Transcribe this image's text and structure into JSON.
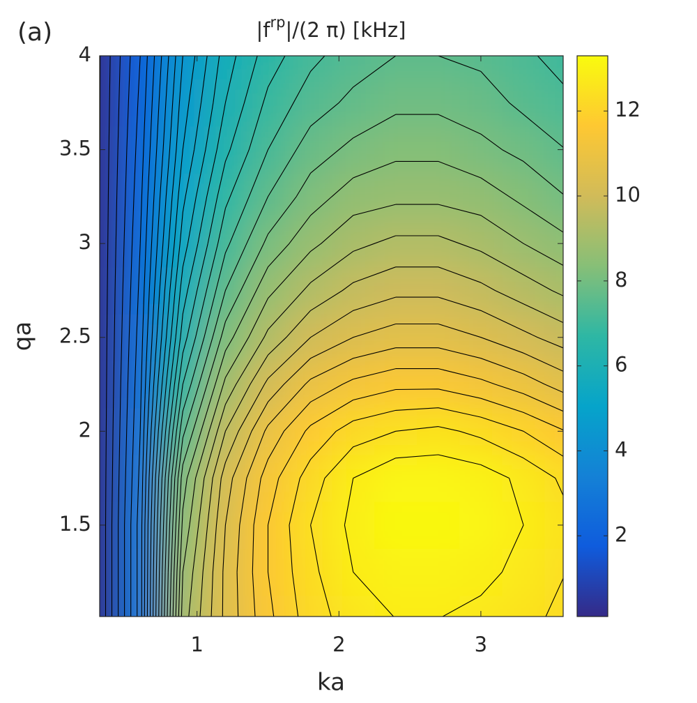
{
  "label": "(a)",
  "chart_data": {
    "type": "contour",
    "title": {
      "main": "|f",
      "sup": "rp",
      "rest": "|/(2 π) [kHz]"
    },
    "x_label": "ka",
    "y_label": "qa",
    "x": [
      0.3,
      0.6,
      0.9,
      1.2,
      1.5,
      1.8,
      2.1,
      2.4,
      2.7,
      3.0,
      3.3,
      3.6
    ],
    "y": [
      1.0,
      1.25,
      1.5,
      1.75,
      2.0,
      2.25,
      2.5,
      2.75,
      3.0,
      3.25,
      3.5,
      3.75,
      4.0
    ],
    "z": [
      [
        0.3,
        3,
        9,
        10.5,
        11.5,
        12.2,
        12.6,
        12.8,
        12.8,
        12.7,
        12.5,
        12.3
      ],
      [
        0.3,
        3,
        8.8,
        10.5,
        11.6,
        12.3,
        12.8,
        13.0,
        13.0,
        12.9,
        12.7,
        12.4
      ],
      [
        0.3,
        3,
        8.5,
        10.4,
        11.6,
        12.4,
        12.9,
        13.2,
        13.2,
        13.1,
        12.8,
        12.5
      ],
      [
        0.3,
        2.9,
        8.2,
        10.2,
        11.4,
        12.2,
        12.8,
        13.1,
        13.1,
        13.0,
        12.7,
        12.3
      ],
      [
        0.3,
        2.8,
        7.5,
        9.6,
        10.9,
        11.7,
        12.2,
        12.4,
        12.5,
        12.3,
        12.0,
        11.6
      ],
      [
        0.3,
        2.7,
        6.8,
        8.9,
        10.1,
        10.9,
        11.3,
        11.5,
        11.5,
        11.3,
        11.0,
        10.6
      ],
      [
        0.3,
        2.6,
        6.2,
        8.2,
        9.3,
        10.0,
        10.4,
        10.6,
        10.6,
        10.4,
        10.1,
        9.8
      ],
      [
        0.3,
        2.5,
        5.8,
        7.6,
        8.7,
        9.3,
        9.7,
        9.9,
        9.9,
        9.7,
        9.4,
        9.1
      ],
      [
        0.3,
        2.4,
        5.4,
        7.1,
        8.1,
        8.7,
        9.1,
        9.3,
        9.3,
        9.1,
        8.8,
        8.5
      ],
      [
        0.3,
        2.3,
        5.1,
        6.7,
        7.6,
        8.2,
        8.6,
        8.7,
        8.7,
        8.6,
        8.3,
        8.0
      ],
      [
        0.3,
        2.2,
        4.8,
        6.3,
        7.2,
        7.8,
        8.1,
        8.3,
        8.3,
        8.1,
        7.9,
        7.6
      ],
      [
        0.3,
        2.1,
        4.6,
        6.0,
        6.9,
        7.4,
        7.7,
        7.9,
        7.9,
        7.8,
        7.5,
        7.3
      ],
      [
        0.3,
        2.0,
        4.4,
        5.8,
        6.6,
        7.1,
        7.4,
        7.6,
        7.6,
        7.5,
        7.3,
        7.0
      ]
    ],
    "xlim": [
      0.314,
      3.58
    ],
    "ylim": [
      1.013,
      4
    ],
    "xticks": [
      1,
      2,
      3
    ],
    "yticks": [
      1.5,
      2,
      2.5,
      3,
      3.5,
      4
    ],
    "clim": [
      0.1,
      13.3
    ],
    "cticks": [
      2,
      4,
      6,
      8,
      10,
      12
    ],
    "contour_step": 0.4,
    "contour_color": "#000000",
    "colormap": [
      "#352a87",
      "#0f5cdd",
      "#1481d6",
      "#06a4ca",
      "#2eb7a4",
      "#87bf77",
      "#d1bb59",
      "#fec832",
      "#f9fb0e"
    ]
  }
}
